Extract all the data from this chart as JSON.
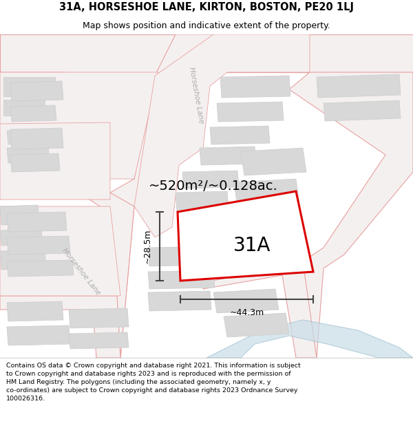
{
  "title": "31A, HORSESHOE LANE, KIRTON, BOSTON, PE20 1LJ",
  "subtitle": "Map shows position and indicative extent of the property.",
  "footer_line1": "Contains OS data © Crown copyright and database right 2021. This information is subject",
  "footer_line2": "to Crown copyright and database rights 2023 and is reproduced with the permission of",
  "footer_line3": "HM Land Registry. The polygons (including the associated geometry, namely x, y",
  "footer_line4": "co-ordinates) are subject to Crown copyright and database rights 2023 Ordnance Survey",
  "footer_line5": "100026316.",
  "area_label": "~520m²/~0.128ac.",
  "width_label": "~44.3m",
  "height_label": "~28.5m",
  "plot_label": "31A",
  "highlight_stroke": "#dd0000",
  "dimension_color": "#444444",
  "road_fill": "#f5f0f0",
  "road_stroke": "#e8a0a0",
  "building_fill": "#d8d8d8",
  "building_stroke": "#cccccc",
  "water_fill": "#c8dde8",
  "water_stroke": "#a0c0d0",
  "lane_color": "#bbbbbb",
  "title_fontsize": 10.5,
  "subtitle_fontsize": 9,
  "footer_fontsize": 6.8
}
